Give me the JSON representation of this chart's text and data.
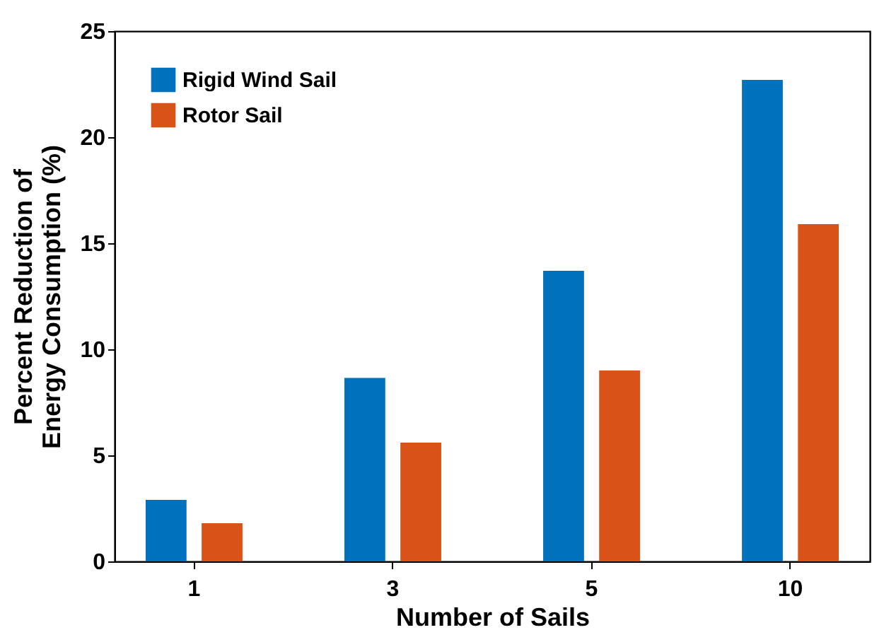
{
  "chart_data": {
    "type": "bar",
    "xlabel": "Number of Sails",
    "ylabel": "Percent Reduction of\nEnergy Consumption (%)",
    "categories": [
      "1",
      "3",
      "5",
      "10"
    ],
    "series": [
      {
        "name": "Rigid Wind Sail",
        "color": "#0072bd",
        "values": [
          2.9,
          8.65,
          13.7,
          22.7
        ]
      },
      {
        "name": "Rotor Sail",
        "color": "#d95319",
        "values": [
          1.8,
          5.6,
          9.0,
          15.9
        ]
      }
    ],
    "ylim": [
      0,
      25
    ],
    "yticks": [
      0,
      5,
      10,
      15,
      20,
      25
    ],
    "grid": false,
    "legend": "top left"
  }
}
